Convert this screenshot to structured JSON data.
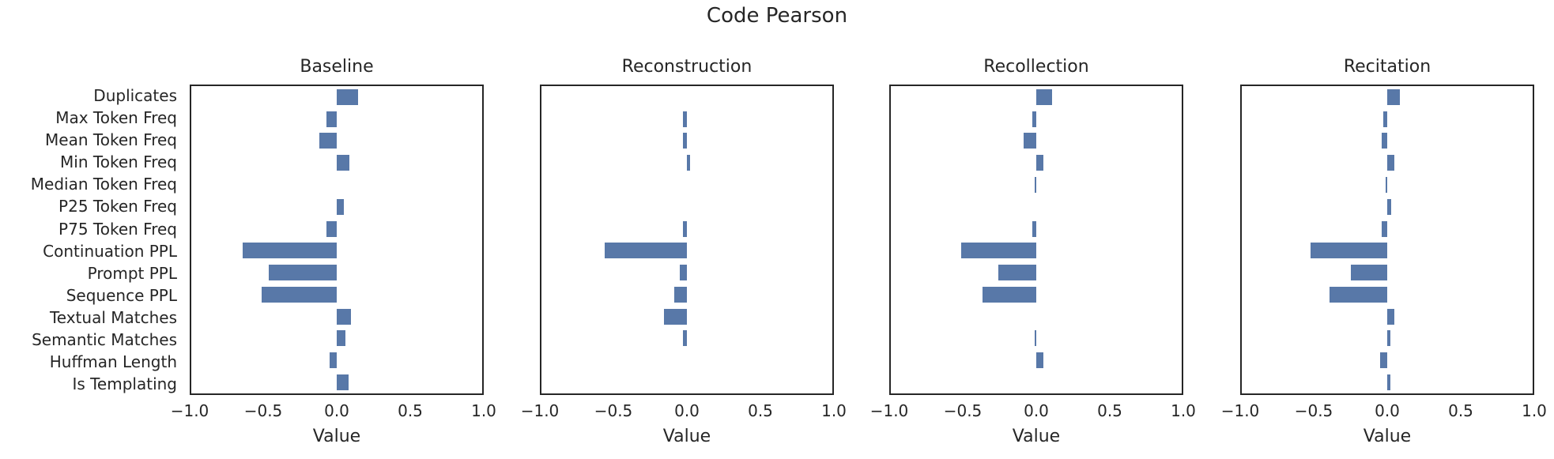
{
  "chart_data": {
    "type": "bar",
    "orientation": "horizontal",
    "title": "Code Pearson",
    "xlabel": "Value",
    "xlim": [
      -1.0,
      1.0
    ],
    "xtick_labels": [
      "−1.0",
      "−0.5",
      "0.0",
      "0.5",
      "1.0"
    ],
    "xtick_values": [
      -1.0,
      -0.5,
      0.0,
      0.5,
      1.0
    ],
    "grid": false,
    "legend_position": "none",
    "bar_color": "#5878a8",
    "axis_color": "#262626",
    "text_color": "#262626",
    "categories": [
      "Duplicates",
      "Max Token Freq",
      "Mean Token Freq",
      "Min Token Freq",
      "Median Token Freq",
      "P25 Token Freq",
      "P75 Token Freq",
      "Continuation PPL",
      "Prompt PPL",
      "Sequence PPL",
      "Textual Matches",
      "Semantic Matches",
      "Huffman Length",
      "Is Templating"
    ],
    "series": [
      {
        "name": "Baseline",
        "values": [
          0.15,
          -0.07,
          -0.12,
          0.09,
          0.0,
          0.05,
          -0.07,
          -0.65,
          -0.47,
          -0.52,
          0.1,
          0.06,
          -0.05,
          0.08
        ]
      },
      {
        "name": "Reconstruction",
        "values": [
          0.0,
          -0.03,
          -0.03,
          0.02,
          0.0,
          0.0,
          -0.03,
          -0.57,
          -0.05,
          -0.09,
          -0.16,
          -0.03,
          0.0,
          0.0
        ]
      },
      {
        "name": "Recollection",
        "values": [
          0.11,
          -0.03,
          -0.09,
          0.05,
          -0.01,
          0.0,
          -0.03,
          -0.52,
          -0.26,
          -0.37,
          0.0,
          -0.01,
          0.05,
          0.0
        ]
      },
      {
        "name": "Recitation",
        "values": [
          0.09,
          -0.03,
          -0.04,
          0.05,
          -0.01,
          0.03,
          -0.04,
          -0.53,
          -0.25,
          -0.4,
          0.05,
          0.02,
          -0.05,
          0.02
        ]
      }
    ]
  }
}
